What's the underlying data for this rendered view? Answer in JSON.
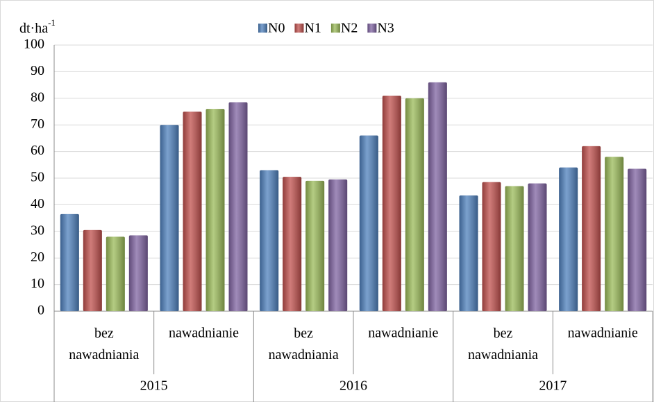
{
  "chart_data": {
    "type": "bar",
    "y_label": "dt·ha",
    "y_label_superscript": "-1",
    "groups": [
      "2015",
      "2016",
      "2017"
    ],
    "categories": [
      "bez nawadniania",
      "nawadnianie",
      "bez nawadniania",
      "nawadnianie",
      "bez nawadniania",
      "nawadnianie"
    ],
    "series": [
      {
        "name": "N0",
        "color": "#4f81bd",
        "values": [
          36.5,
          70,
          53,
          66,
          43.5,
          54
        ]
      },
      {
        "name": "N1",
        "color": "#c0504d",
        "values": [
          30.5,
          75,
          50.5,
          81,
          48.5,
          62
        ]
      },
      {
        "name": "N2",
        "color": "#9bbb59",
        "values": [
          28,
          76,
          49,
          80,
          47,
          58
        ]
      },
      {
        "name": "N3",
        "color": "#8064a2",
        "values": [
          28.5,
          78.5,
          49.5,
          86,
          48,
          53.5
        ]
      }
    ],
    "ylim": [
      0,
      100
    ],
    "yticks": [
      0,
      10,
      20,
      30,
      40,
      50,
      60,
      70,
      80,
      90,
      100
    ],
    "grid": true,
    "legend": "top"
  }
}
